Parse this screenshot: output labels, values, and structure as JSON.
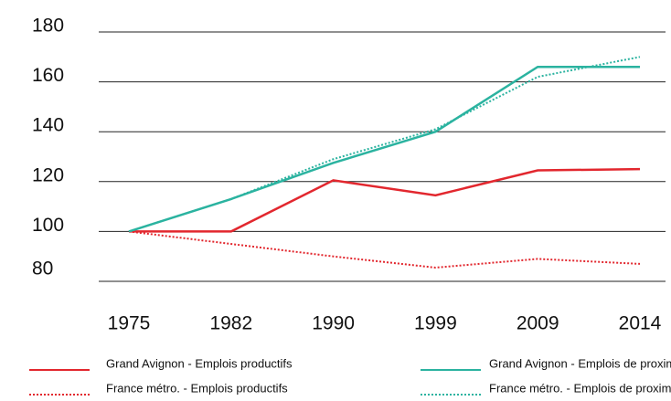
{
  "chart_data": {
    "type": "line",
    "categories": [
      "1975",
      "1982",
      "1990",
      "1999",
      "2009",
      "2014"
    ],
    "series": [
      {
        "name": "Grand Avignon - Emplois productifs",
        "color": "#e2272e",
        "style": "solid",
        "values": [
          100,
          100,
          120.5,
          114.5,
          124.5,
          125
        ]
      },
      {
        "name": "Grand Avignon - Emplois de proximité",
        "color": "#2bb3a0",
        "style": "solid",
        "values": [
          100,
          113,
          127.5,
          140,
          166,
          166
        ]
      },
      {
        "name": "France métro.  - Emplois productifs",
        "color": "#e2272e",
        "style": "dotted",
        "values": [
          100,
          95,
          90,
          85.5,
          89,
          87
        ]
      },
      {
        "name": "France métro.  - Emplois de proximité",
        "color": "#2bb3a0",
        "style": "dotted",
        "values": [
          100,
          113,
          129,
          141,
          162,
          170
        ]
      }
    ],
    "ylim": [
      80,
      180
    ],
    "yticks": [
      80,
      100,
      120,
      140,
      160,
      180
    ],
    "grid": true
  }
}
